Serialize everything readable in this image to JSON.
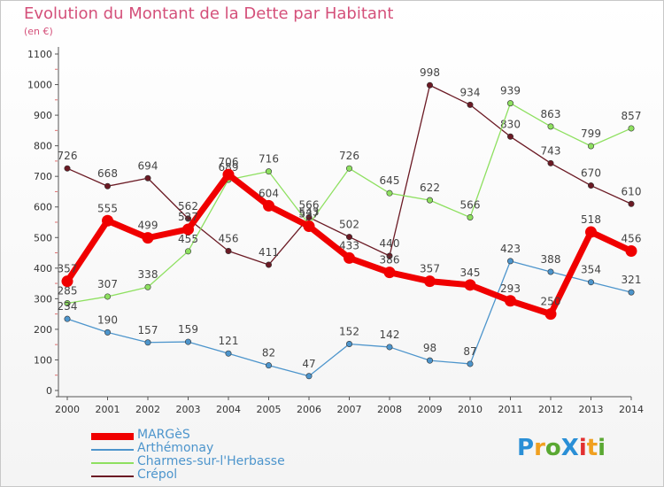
{
  "title": "Evolution du Montant de la Dette par Habitant",
  "subtitle": "(en €)",
  "logo": {
    "text": "Proxiti",
    "letters": [
      {
        "ch": "P",
        "color": "#2a8fd6"
      },
      {
        "ch": "r",
        "color": "#f0a020"
      },
      {
        "ch": "o",
        "color": "#5aa832"
      },
      {
        "ch": "X",
        "color": "#2a8fd6"
      },
      {
        "ch": "i",
        "color": "#e23030"
      },
      {
        "ch": "t",
        "color": "#f0a020"
      },
      {
        "ch": "i",
        "color": "#5aa832"
      }
    ]
  },
  "chart_data": {
    "type": "line",
    "title": "Evolution du Montant de la Dette par Habitant",
    "subtitle": "(en €)",
    "x": [
      2000,
      2001,
      2002,
      2003,
      2004,
      2005,
      2006,
      2007,
      2008,
      2009,
      2010,
      2011,
      2012,
      2013,
      2014
    ],
    "ylim": [
      0,
      1100
    ],
    "yticks": [
      0,
      100,
      200,
      300,
      400,
      500,
      600,
      700,
      800,
      900,
      1000,
      1100
    ],
    "grid": false,
    "legend_position": "bottom-left",
    "series": [
      {
        "name": "Crépol",
        "color": "#6b1a24",
        "values": [
          726,
          668,
          694,
          562,
          456,
          411,
          566,
          502,
          440,
          998,
          934,
          830,
          743,
          670,
          610
        ]
      },
      {
        "name": "Charmes-sur-l'Herbasse",
        "color": "#8ee060",
        "values": [
          285,
          307,
          338,
          455,
          689,
          716,
          543,
          726,
          645,
          622,
          566,
          939,
          863,
          799,
          857
        ]
      },
      {
        "name": "Arthémonay",
        "color": "#4d95cc",
        "values": [
          234,
          190,
          157,
          159,
          121,
          82,
          47,
          152,
          142,
          98,
          87,
          423,
          388,
          354,
          321
        ]
      },
      {
        "name": "MARGèS",
        "color": "#f00000",
        "values": [
          357,
          555,
          499,
          527,
          706,
          604,
          537,
          433,
          386,
          357,
          345,
          293,
          250,
          518,
          456
        ]
      }
    ]
  }
}
